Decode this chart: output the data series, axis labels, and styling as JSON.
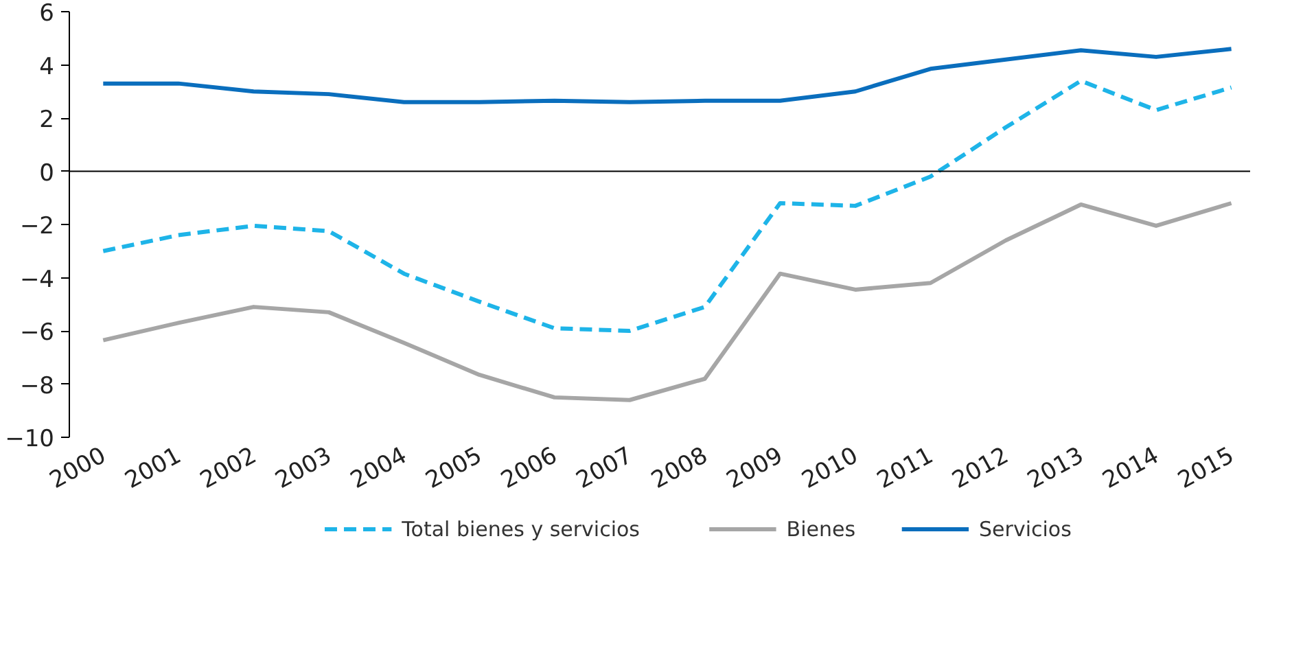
{
  "chart_data": {
    "type": "line",
    "categories": [
      "2000",
      "2001",
      "2002",
      "2003",
      "2004",
      "2005",
      "2006",
      "2007",
      "2008",
      "2009",
      "2010",
      "2011",
      "2012",
      "2013",
      "2014",
      "2015"
    ],
    "series": [
      {
        "name": "Total bienes y servicios",
        "color": "#1eb4e8",
        "line_style": "dashed",
        "values": [
          -3.0,
          -2.4,
          -2.05,
          -2.25,
          -3.85,
          -4.9,
          -5.9,
          -6.0,
          -5.1,
          -1.2,
          -1.3,
          -0.2,
          1.65,
          3.4,
          2.3,
          3.15
        ]
      },
      {
        "name": "Bienes",
        "color": "#a6a6a6",
        "line_style": "solid",
        "values": [
          -6.35,
          -5.7,
          -5.1,
          -5.3,
          -6.45,
          -7.65,
          -8.5,
          -8.6,
          -7.8,
          -3.85,
          -4.45,
          -4.2,
          -2.6,
          -1.25,
          -2.05,
          -1.2
        ]
      },
      {
        "name": "Servicios",
        "color": "#0a6ebd",
        "line_style": "solid",
        "values": [
          3.3,
          3.3,
          3.0,
          2.9,
          2.6,
          2.6,
          2.65,
          2.6,
          2.65,
          2.65,
          3.0,
          3.85,
          4.2,
          4.55,
          4.3,
          4.6
        ]
      }
    ],
    "ylim": [
      -10,
      6
    ],
    "yticks": [
      -10,
      -8,
      -6,
      -4,
      -2,
      0,
      2,
      4,
      6
    ],
    "ref_lines": [
      {
        "axis": "y",
        "value": 0,
        "color": "#000000"
      }
    ],
    "grid": false,
    "legend": "bottom",
    "marker": "none"
  }
}
